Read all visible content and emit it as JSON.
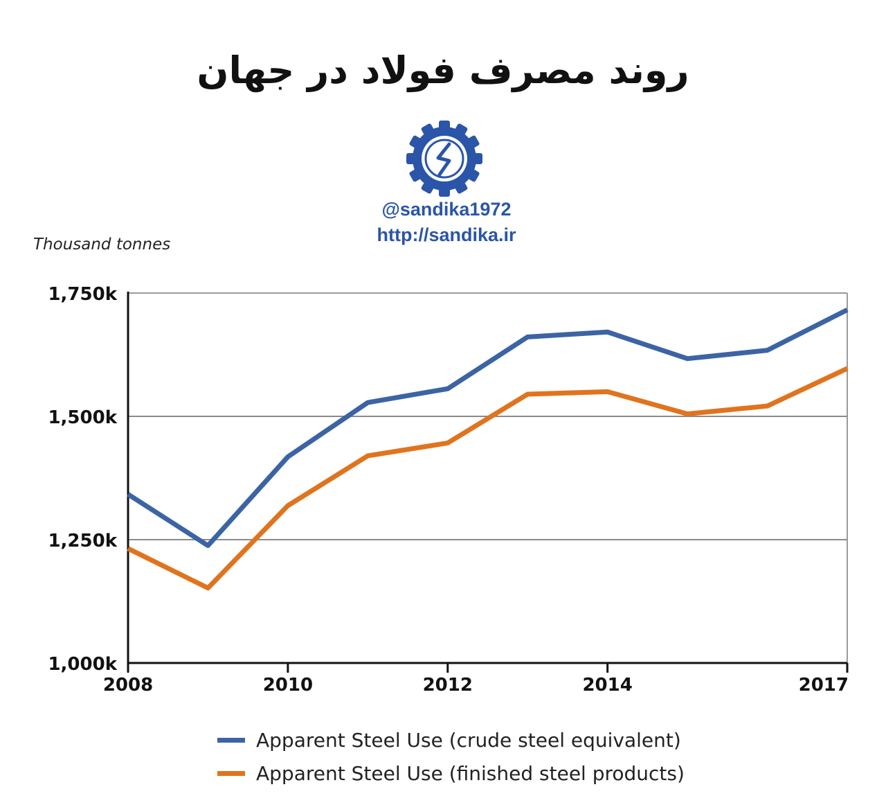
{
  "header": {
    "title": "روند مصرف فولاد در جهان",
    "handle": "@sandika1972",
    "url": "http://sandika.ir"
  },
  "logo": {
    "icon": "sandika-logo-icon",
    "color": "#2a55a8"
  },
  "chart_data": {
    "type": "line",
    "title": "روند مصرف فولاد در جهان",
    "unit_label": "Thousand tonnes",
    "x": [
      2008,
      2009,
      2010,
      2011,
      2012,
      2013,
      2014,
      2015,
      2016,
      2017
    ],
    "x_ticks": [
      "2008",
      "2010",
      "2012",
      "2014",
      "2017"
    ],
    "y_ticks": [
      "1,000k",
      "1,250k",
      "1,500k",
      "1,750k"
    ],
    "ylim": [
      1000,
      1750
    ],
    "grid": true,
    "legend_position": "bottom",
    "series": [
      {
        "name": "Apparent Steel Use (crude steel equivalent)",
        "color": "#3c64a4",
        "values": [
          1342,
          1238,
          1418,
          1528,
          1556,
          1661,
          1671,
          1617,
          1634,
          1716
        ]
      },
      {
        "name": "Apparent Steel Use (finished steel products)",
        "color": "#e0741e",
        "values": [
          1232,
          1152,
          1319,
          1420,
          1446,
          1545,
          1550,
          1505,
          1521,
          1597
        ]
      }
    ]
  }
}
